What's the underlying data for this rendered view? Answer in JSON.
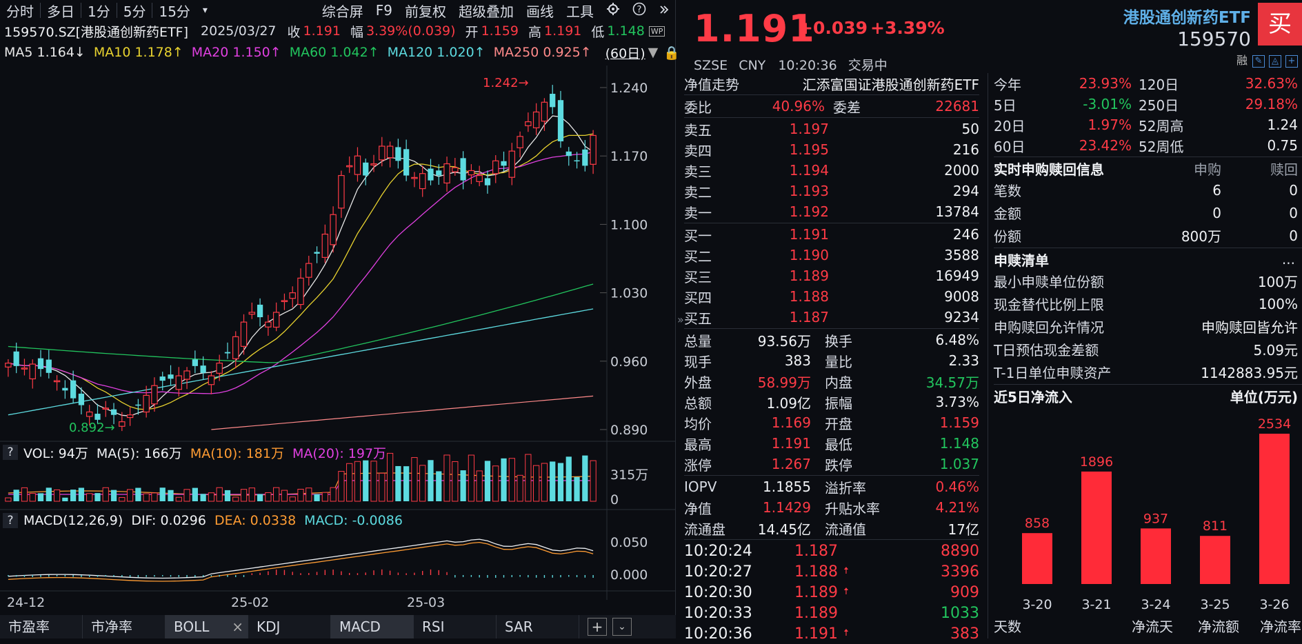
{
  "toolbar": {
    "items": [
      "分时",
      "多日",
      "1分",
      "5分",
      "15分",
      "▾"
    ],
    "right_items": [
      "综合屏",
      "F9",
      "前复权",
      "超级叠加",
      "画线",
      "工具"
    ]
  },
  "info": {
    "code_name": "159570.SZ[港股通创新药ETF]",
    "date": "2025/03/27",
    "close_label": "收",
    "close": "1.191",
    "range_label": "幅",
    "range": "3.39%(0.039)",
    "open_label": "开",
    "open": "1.159",
    "high_label": "高",
    "high": "1.191",
    "low_label": "低",
    "low": "1.148",
    "wp": "WP"
  },
  "ma": {
    "ma5": "MA5 1.164↓",
    "ma10": "MA10 1.178↑",
    "ma20": "MA20 1.150↑",
    "ma60": "MA60 1.042↑",
    "ma120": "MA120 1.020↑",
    "ma250": "MA250 0.925↑",
    "period": "(60日)"
  },
  "kline": {
    "yticks": [
      "1.240",
      "1.170",
      "1.100",
      "1.030",
      "0.960",
      "0.890"
    ],
    "ytick_values": [
      1.24,
      1.17,
      1.1,
      1.03,
      0.96,
      0.89
    ],
    "max_label": "1.242",
    "max_value": 1.242,
    "min_label": "0.892",
    "min_value": 0.892,
    "xlabels": [
      "24-12",
      "25-02",
      "25-03"
    ]
  },
  "vol": {
    "title": "VOL: 94万",
    "ma5": "MA(5): 166万",
    "ma10": "MA(10): 181万",
    "ma20": "MA(20): 197万",
    "yticks": [
      "315万",
      "0"
    ]
  },
  "macd": {
    "title": "MACD(12,26,9)",
    "dif": "DIF: 0.0296",
    "dea": "DEA: 0.0338",
    "macd": "MACD: -0.0086",
    "yticks": [
      "0.050",
      "0.000"
    ]
  },
  "bottom_tabs": [
    "市盈率",
    "市净率",
    "BOLL",
    "KDJ",
    "MACD",
    "RSI",
    "SAR"
  ],
  "quote": {
    "price": "1.191",
    "change": "+0.039",
    "pct": "+3.39%",
    "exchange": "SZSE",
    "currency": "CNY",
    "time": "10:20:36",
    "status": "交易中",
    "fund_name": "港股通创新药ETF",
    "fund_code": "159570",
    "buy": "买",
    "rong": "融"
  },
  "nav_trend": {
    "label": "净值走势",
    "name": "汇添富国证港股通创新药ETF"
  },
  "commission": {
    "ratio_label": "委比",
    "ratio": "40.96%",
    "diff_label": "委差",
    "diff": "22681"
  },
  "asks": [
    {
      "label": "卖五",
      "price": "1.197",
      "vol": "50"
    },
    {
      "label": "卖四",
      "price": "1.195",
      "vol": "216"
    },
    {
      "label": "卖三",
      "price": "1.194",
      "vol": "2000"
    },
    {
      "label": "卖二",
      "price": "1.193",
      "vol": "294"
    },
    {
      "label": "卖一",
      "price": "1.192",
      "vol": "13784"
    }
  ],
  "bids": [
    {
      "label": "买一",
      "price": "1.191",
      "vol": "246"
    },
    {
      "label": "买二",
      "price": "1.190",
      "vol": "3588"
    },
    {
      "label": "买三",
      "price": "1.189",
      "vol": "16949"
    },
    {
      "label": "买四",
      "price": "1.188",
      "vol": "9008"
    },
    {
      "label": "买五",
      "price": "1.187",
      "vol": "9234"
    }
  ],
  "stats": [
    {
      "l1": "总量",
      "v1": "93.56万",
      "c1": "white",
      "l2": "换手",
      "v2": "6.48%",
      "c2": "white"
    },
    {
      "l1": "现手",
      "v1": "383",
      "c1": "white",
      "l2": "量比",
      "v2": "2.33",
      "c2": "white"
    },
    {
      "l1": "外盘",
      "v1": "58.99万",
      "c1": "red",
      "l2": "内盘",
      "v2": "34.57万",
      "c2": "green"
    },
    {
      "l1": "总额",
      "v1": "1.09亿",
      "c1": "white",
      "l2": "振幅",
      "v2": "3.73%",
      "c2": "white"
    },
    {
      "l1": "均价",
      "v1": "1.169",
      "c1": "red",
      "l2": "开盘",
      "v2": "1.159",
      "c2": "red"
    },
    {
      "l1": "最高",
      "v1": "1.191",
      "c1": "red",
      "l2": "最低",
      "v2": "1.148",
      "c2": "green"
    },
    {
      "l1": "涨停",
      "v1": "1.267",
      "c1": "red",
      "l2": "跌停",
      "v2": "1.037",
      "c2": "green"
    }
  ],
  "stats2": [
    {
      "l1": "IOPV",
      "v1": "1.1855",
      "c1": "white",
      "l2": "溢折率",
      "v2": "0.46%",
      "c2": "red"
    },
    {
      "l1": "净值",
      "v1": "1.1429",
      "c1": "red",
      "l2": "升贴水率",
      "v2": "4.21%",
      "c2": "red"
    },
    {
      "l1": "流通盘",
      "v1": "14.45亿",
      "c1": "white",
      "l2": "流通值",
      "v2": "17亿",
      "c2": "white"
    }
  ],
  "ticks": [
    {
      "time": "10:20:24",
      "price": "1.187",
      "arrow": "",
      "vol": "8890",
      "vc": "red"
    },
    {
      "time": "10:20:27",
      "price": "1.188",
      "arrow": "🠅",
      "vol": "3396",
      "vc": "red"
    },
    {
      "time": "10:20:30",
      "price": "1.189",
      "arrow": "🠅",
      "vol": "909",
      "vc": "red"
    },
    {
      "time": "10:20:33",
      "price": "1.189",
      "arrow": "",
      "vol": "1033",
      "vc": "green"
    },
    {
      "time": "10:20:36",
      "price": "1.191",
      "arrow": "🠅",
      "vol": "383",
      "vc": "red"
    }
  ],
  "perf": [
    {
      "l1": "今年",
      "v1": "23.93%",
      "c1": "red",
      "l2": "120日",
      "v2": "32.63%",
      "c2": "red"
    },
    {
      "l1": "5日",
      "v1": "-3.01%",
      "c1": "green",
      "l2": "250日",
      "v2": "29.18%",
      "c2": "red"
    },
    {
      "l1": "20日",
      "v1": "1.97%",
      "c1": "red",
      "l2": "52周高",
      "v2": "1.24",
      "c2": "white"
    },
    {
      "l1": "60日",
      "v1": "23.42%",
      "c1": "red",
      "l2": "52周低",
      "v2": "0.75",
      "c2": "white"
    }
  ],
  "subscribe": {
    "title": "实时申购赎回信息",
    "col1": "申购",
    "col2": "赎回",
    "rows": [
      {
        "label": "笔数",
        "v1": "6",
        "v2": "0"
      },
      {
        "label": "金额",
        "v1": "0",
        "v2": "0"
      },
      {
        "label": "份额",
        "v1": "800万",
        "v2": "0"
      }
    ]
  },
  "redeem_list": {
    "title": "申赎清单",
    "more": "...",
    "rows": [
      {
        "label": "最小申赎单位份额",
        "value": "100万"
      },
      {
        "label": "现金替代比例上限",
        "value": "100%"
      },
      {
        "label": "申购赎回允许情况",
        "value": "申购赎回皆允许"
      },
      {
        "label": "T日预估现金差额",
        "value": "5.09元"
      },
      {
        "label": "T-1日单位申赎资产",
        "value": "1142883.95元"
      }
    ]
  },
  "inflow": {
    "title": "近5日净流入",
    "unit": "单位(万元)",
    "footer": [
      "天数",
      "净流天",
      "净流额",
      "净流率"
    ]
  },
  "chart_data": {
    "type": "bar",
    "title": "近5日净流入",
    "categories": [
      "3-20",
      "3-21",
      "3-24",
      "3-25",
      "3-26"
    ],
    "values": [
      858,
      1896,
      937,
      811,
      2534
    ],
    "ylabel": "单位(万元)"
  },
  "colors": {
    "up": "#ff3b46",
    "down": "#5ddbe0",
    "bg": "#0b0d12",
    "accent": "#5fb0e8"
  }
}
